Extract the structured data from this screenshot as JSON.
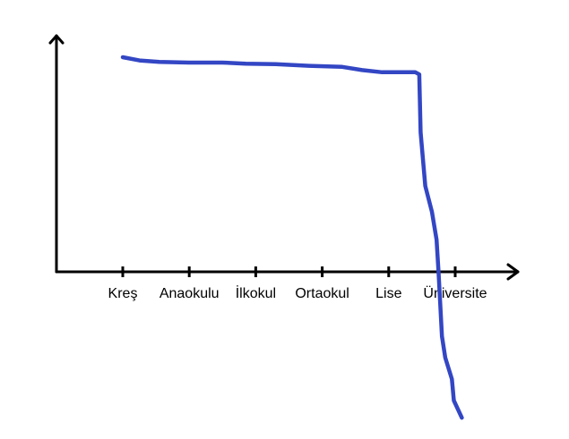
{
  "chart_data": {
    "type": "line",
    "title": "",
    "xlabel": "",
    "ylabel": "",
    "categories": [
      "Kreş",
      "Anaokulu",
      "İlkokul",
      "Ortaokul",
      "Lise",
      "Üniversite"
    ],
    "grid": false,
    "legend": "none",
    "ylim": [
      -7,
      10
    ],
    "series": [
      {
        "color": "#3346c4",
        "points": [
          {
            "x": 0.0,
            "y": 10.0
          },
          {
            "x": 0.25,
            "y": 9.85
          },
          {
            "x": 0.55,
            "y": 9.78
          },
          {
            "x": 1.0,
            "y": 9.75
          },
          {
            "x": 1.5,
            "y": 9.75
          },
          {
            "x": 1.85,
            "y": 9.7
          },
          {
            "x": 2.3,
            "y": 9.68
          },
          {
            "x": 2.8,
            "y": 9.6
          },
          {
            "x": 3.3,
            "y": 9.55
          },
          {
            "x": 3.6,
            "y": 9.4
          },
          {
            "x": 3.9,
            "y": 9.3
          },
          {
            "x": 4.4,
            "y": 9.3
          },
          {
            "x": 4.46,
            "y": 9.2
          },
          {
            "x": 4.48,
            "y": 6.5
          },
          {
            "x": 4.55,
            "y": 4.0
          },
          {
            "x": 4.65,
            "y": 2.8
          },
          {
            "x": 4.72,
            "y": 1.5
          },
          {
            "x": 4.75,
            "y": 0.0
          },
          {
            "x": 4.8,
            "y": -3.0
          },
          {
            "x": 4.85,
            "y": -4.0
          },
          {
            "x": 4.95,
            "y": -5.0
          },
          {
            "x": 4.98,
            "y": -6.0
          },
          {
            "x": 5.1,
            "y": -6.8
          }
        ]
      }
    ]
  }
}
